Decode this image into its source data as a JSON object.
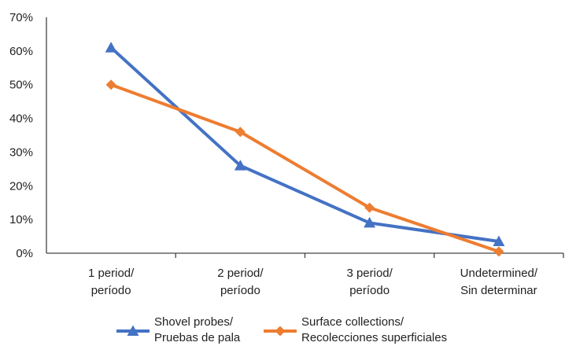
{
  "chart_data": {
    "type": "line",
    "categories": [
      [
        "1 period/",
        "período"
      ],
      [
        "2 period/",
        "período"
      ],
      [
        "3 period/",
        "período"
      ],
      [
        "Undetermined/",
        "Sin determinar"
      ]
    ],
    "y_ticks": [
      "0%",
      "10%",
      "20%",
      "30%",
      "40%",
      "50%",
      "60%",
      "70%"
    ],
    "ylim": [
      0,
      70
    ],
    "grid": false,
    "legend_position": "bottom",
    "series": [
      {
        "name_lines": [
          "Shovel probes/",
          "Pruebas de pala"
        ],
        "values": [
          61,
          26,
          9,
          3.5
        ],
        "color": "#4472C4",
        "marker": "triangle"
      },
      {
        "name_lines": [
          "Surface collections/",
          "Recolecciones superficiales"
        ],
        "values": [
          50,
          36,
          13.5,
          0.5
        ],
        "color": "#ED7D31",
        "marker": "diamond"
      }
    ]
  }
}
